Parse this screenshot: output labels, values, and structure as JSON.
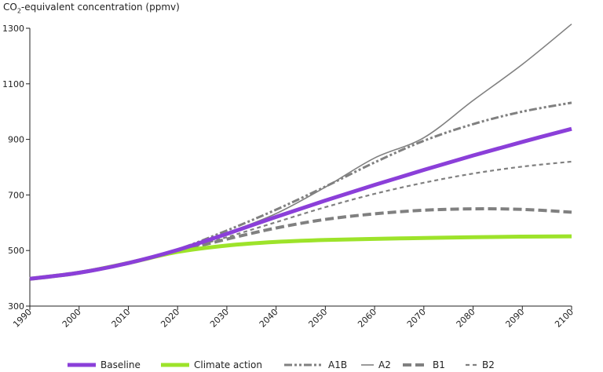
{
  "chart_data": {
    "type": "line",
    "ylabel": {
      "prefix": "CO",
      "sub": "2",
      "suffix": "-equivalent concentration (ppmv)"
    },
    "xlabel": "",
    "xlim": [
      1990,
      2100
    ],
    "ylim": [
      300,
      1300
    ],
    "x_ticks": [
      "1990",
      "2000",
      "2010",
      "2020",
      "2030",
      "2040",
      "2050",
      "2060",
      "2070",
      "2080",
      "2090",
      "2100"
    ],
    "y_ticks": [
      "300",
      "500",
      "700",
      "900",
      "1100",
      "1300"
    ],
    "grid": false,
    "legend_position": "bottom",
    "x": [
      1990,
      2000,
      2010,
      2020,
      2030,
      2040,
      2050,
      2060,
      2070,
      2080,
      2090,
      2100
    ],
    "series": [
      {
        "name": "Baseline",
        "color": "#8b3fd9",
        "style": "solid-thick",
        "values": [
          398,
          420,
          455,
          502,
          560,
          621,
          680,
          736,
          790,
          842,
          891,
          938
        ]
      },
      {
        "name": "Climate action",
        "color": "#9de32a",
        "style": "solid-thick",
        "values": [
          398,
          420,
          455,
          495,
          518,
          531,
          538,
          542,
          545,
          548,
          550,
          551
        ]
      },
      {
        "name": "A1B",
        "color": "#808080",
        "style": "dash-dot-dot",
        "values": [
          398,
          420,
          457,
          504,
          572,
          647,
          730,
          817,
          895,
          955,
          1000,
          1032
        ]
      },
      {
        "name": "A2",
        "color": "#808080",
        "style": "solid-thin",
        "values": [
          398,
          420,
          455,
          502,
          563,
          633,
          728,
          833,
          906,
          1040,
          1170,
          1315
        ]
      },
      {
        "name": "B1",
        "color": "#808080",
        "style": "dashed-thick",
        "values": [
          398,
          420,
          455,
          497,
          541,
          581,
          612,
          632,
          645,
          650,
          648,
          638
        ]
      },
      {
        "name": "B2",
        "color": "#808080",
        "style": "dashed-short",
        "values": [
          398,
          420,
          455,
          498,
          548,
          602,
          656,
          704,
          744,
          777,
          802,
          820
        ]
      }
    ]
  }
}
